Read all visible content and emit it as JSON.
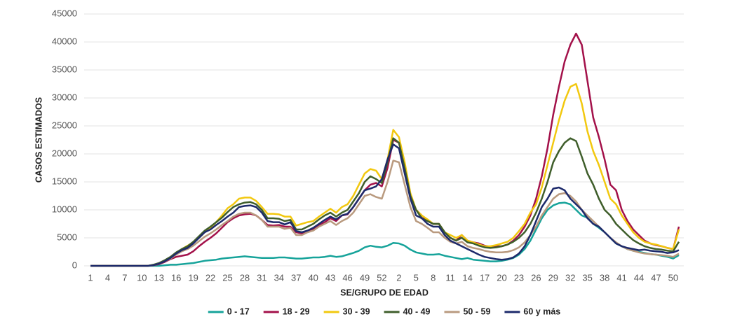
{
  "chart_data": {
    "type": "line",
    "x_label": "SE/GRUPO DE EDAD",
    "y_label": "CASOS ESTIMADOS",
    "categories": [
      "1",
      null,
      null,
      "4",
      null,
      null,
      "7",
      null,
      null,
      "10",
      null,
      null,
      "13",
      null,
      null,
      "16",
      null,
      null,
      "19",
      null,
      null,
      "22",
      null,
      null,
      "25",
      null,
      null,
      "28",
      null,
      null,
      "31",
      null,
      null,
      "34",
      null,
      null,
      "37",
      null,
      null,
      "40",
      null,
      null,
      "43",
      null,
      null,
      "46",
      null,
      null,
      "49",
      null,
      null,
      "52",
      null,
      null,
      "2",
      null,
      null,
      "5",
      null,
      null,
      "8",
      null,
      null,
      "11",
      null,
      null,
      "14",
      null,
      null,
      "17",
      null,
      null,
      "20",
      null,
      null,
      "23",
      null,
      null,
      "26",
      null,
      null,
      "29",
      null,
      null,
      "32",
      null,
      null,
      "35",
      null,
      null,
      "38",
      null,
      null,
      "41",
      null,
      null,
      "44",
      null,
      null,
      "47",
      null,
      null,
      "50",
      null
    ],
    "ylim": [
      0,
      45000
    ],
    "yticks": [
      0,
      5000,
      10000,
      15000,
      20000,
      25000,
      30000,
      35000,
      40000,
      45000
    ],
    "grid": true,
    "legend": "bottom",
    "series": [
      {
        "name": "0 - 17",
        "color": "#16a39a",
        "values": [
          0,
          0,
          0,
          0,
          0,
          0,
          0,
          0,
          0,
          0,
          0,
          0,
          0,
          100,
          200,
          200,
          300,
          400,
          500,
          700,
          900,
          1000,
          1100,
          1300,
          1400,
          1500,
          1600,
          1700,
          1600,
          1500,
          1400,
          1400,
          1400,
          1500,
          1500,
          1400,
          1300,
          1300,
          1400,
          1500,
          1500,
          1600,
          1800,
          1600,
          1700,
          2000,
          2300,
          2700,
          3300,
          3600,
          3400,
          3300,
          3600,
          4100,
          4000,
          3600,
          2900,
          2400,
          2200,
          2000,
          2000,
          2100,
          1800,
          1600,
          1400,
          1200,
          1400,
          1100,
          1000,
          900,
          800,
          800,
          900,
          1100,
          1400,
          2000,
          3000,
          4500,
          6500,
          8500,
          10000,
          10800,
          11200,
          11300,
          11000,
          10000,
          9000,
          8600,
          7500,
          6800,
          6000,
          5000,
          4000,
          3500,
          3000,
          2700,
          2500,
          2300,
          2100,
          2000,
          1800,
          1600,
          1300,
          1900
        ]
      },
      {
        "name": "18 - 29",
        "color": "#a3114a",
        "values": [
          0,
          0,
          0,
          0,
          0,
          0,
          0,
          0,
          0,
          0,
          0,
          100,
          300,
          700,
          1200,
          1600,
          1800,
          2000,
          2600,
          3500,
          4300,
          5000,
          5800,
          6800,
          7800,
          8500,
          9000,
          9200,
          9300,
          9000,
          8200,
          7300,
          7200,
          7300,
          7000,
          7000,
          6000,
          5800,
          6200,
          6600,
          7200,
          7800,
          8500,
          8000,
          9000,
          9200,
          10500,
          12000,
          13500,
          14500,
          14800,
          14200,
          17500,
          22500,
          22000,
          18000,
          12500,
          10000,
          9000,
          8000,
          7500,
          7500,
          6000,
          5000,
          4500,
          5500,
          4500,
          4200,
          4000,
          3600,
          3400,
          3500,
          3500,
          3800,
          4500,
          5500,
          7000,
          9000,
          12000,
          16000,
          21000,
          27000,
          32000,
          36500,
          39500,
          41500,
          39500,
          33000,
          26500,
          23000,
          19000,
          14500,
          13500,
          10000,
          8000,
          6500,
          5500,
          4500,
          4000,
          3700,
          3500,
          3200,
          3000,
          7000
        ]
      },
      {
        "name": "30 - 39",
        "color": "#f2c80f",
        "values": [
          0,
          0,
          0,
          0,
          0,
          0,
          0,
          0,
          0,
          0,
          0,
          100,
          400,
          900,
          1500,
          2200,
          3000,
          3600,
          4200,
          5000,
          6000,
          6800,
          7800,
          9000,
          10300,
          11000,
          12000,
          12200,
          12200,
          11600,
          10500,
          9300,
          9300,
          9200,
          8800,
          8800,
          7200,
          7500,
          7800,
          8000,
          8800,
          9500,
          10200,
          9500,
          10500,
          11000,
          12500,
          14500,
          16500,
          17300,
          17000,
          15500,
          19000,
          24300,
          23000,
          18500,
          13000,
          10000,
          9000,
          8300,
          7500,
          7500,
          6000,
          5500,
          5000,
          5500,
          4500,
          4200,
          3800,
          3500,
          3500,
          3700,
          4000,
          4300,
          5000,
          6200,
          7500,
          9500,
          11000,
          14000,
          18000,
          22000,
          26000,
          29500,
          32000,
          32500,
          29000,
          24000,
          20500,
          18000,
          15000,
          12000,
          11000,
          9000,
          7500,
          6000,
          5000,
          4300,
          4000,
          3800,
          3500,
          3200,
          3000,
          6500
        ]
      },
      {
        "name": "40 - 49",
        "color": "#3f5e2b",
        "values": [
          0,
          0,
          0,
          0,
          0,
          0,
          0,
          0,
          0,
          0,
          0,
          200,
          500,
          1000,
          1600,
          2400,
          3000,
          3500,
          4300,
          5300,
          6300,
          7000,
          7800,
          8600,
          9600,
          10500,
          11000,
          11300,
          11400,
          11000,
          10000,
          8500,
          8500,
          8400,
          8000,
          8200,
          6500,
          6500,
          7000,
          7500,
          8300,
          9000,
          9500,
          8800,
          9500,
          10000,
          11500,
          13000,
          15000,
          16000,
          15500,
          14800,
          18500,
          22800,
          22000,
          17500,
          12500,
          10000,
          8500,
          8000,
          7500,
          7500,
          6000,
          5000,
          4500,
          5000,
          4200,
          4000,
          3600,
          3300,
          3200,
          3300,
          3500,
          3800,
          4300,
          5000,
          6000,
          7500,
          9500,
          12000,
          15000,
          18500,
          20500,
          22000,
          22800,
          22300,
          19500,
          16500,
          14500,
          12000,
          10000,
          9000,
          7500,
          6500,
          5500,
          4600,
          4000,
          3500,
          3200,
          3000,
          2900,
          2700,
          2600,
          4300
        ]
      },
      {
        "name": "50 - 59",
        "color": "#b99a7f",
        "values": [
          0,
          0,
          0,
          0,
          0,
          0,
          0,
          0,
          0,
          0,
          0,
          100,
          400,
          800,
          1300,
          2000,
          2600,
          3000,
          3600,
          4400,
          5200,
          5800,
          6500,
          7300,
          8000,
          8800,
          9300,
          9500,
          9500,
          9000,
          8200,
          7000,
          7000,
          7000,
          6600,
          6800,
          5500,
          5500,
          6000,
          6300,
          7000,
          7500,
          8000,
          7300,
          8000,
          8500,
          9500,
          11000,
          12500,
          12800,
          12300,
          12000,
          15000,
          18800,
          18500,
          14500,
          10500,
          8000,
          7500,
          6800,
          6000,
          6000,
          5000,
          4300,
          4000,
          4300,
          3500,
          3200,
          3000,
          2700,
          2500,
          2400,
          2400,
          2500,
          2800,
          3300,
          4200,
          5500,
          7000,
          9000,
          10500,
          12000,
          12800,
          13000,
          12500,
          11500,
          10000,
          9000,
          8000,
          7000,
          6000,
          5000,
          4200,
          3500,
          3000,
          2700,
          2400,
          2200,
          2100,
          2000,
          1900,
          1800,
          1600,
          2200
        ]
      },
      {
        "name": "60 y más",
        "color": "#1d2a6b",
        "values": [
          0,
          0,
          0,
          0,
          0,
          0,
          0,
          0,
          0,
          0,
          0,
          100,
          400,
          800,
          1400,
          2200,
          2800,
          3200,
          4000,
          5000,
          6000,
          6500,
          7300,
          8000,
          8800,
          9500,
          10500,
          10700,
          10800,
          10500,
          9500,
          8000,
          7800,
          7800,
          7400,
          7800,
          6200,
          6000,
          6300,
          6800,
          7500,
          8200,
          8800,
          8300,
          9000,
          9300,
          10500,
          12000,
          13500,
          13800,
          14200,
          15500,
          19000,
          21700,
          21000,
          16500,
          12000,
          9000,
          8500,
          7500,
          7000,
          7000,
          5500,
          4500,
          4000,
          3500,
          3000,
          2500,
          2000,
          1600,
          1400,
          1200,
          1100,
          1200,
          1500,
          2200,
          3500,
          5500,
          8000,
          10500,
          12000,
          13800,
          14000,
          13500,
          12000,
          11000,
          10000,
          8500,
          7500,
          7000,
          6000,
          5000,
          4000,
          3500,
          3200,
          3000,
          2800,
          2900,
          2700,
          2600,
          2500,
          2300,
          2400,
          2800
        ]
      }
    ]
  }
}
